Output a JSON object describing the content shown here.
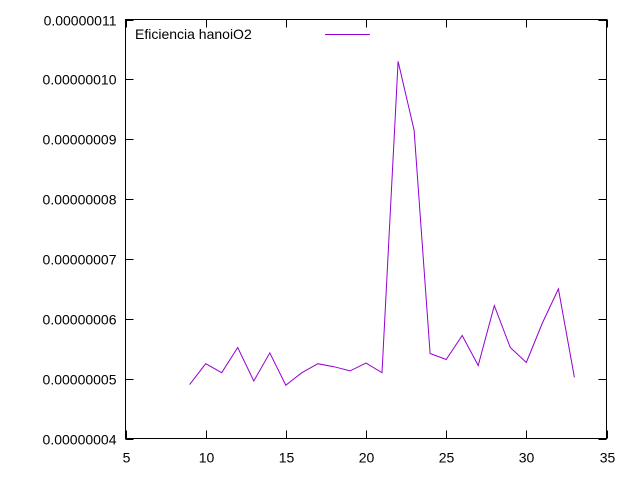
{
  "chart_data": {
    "type": "line",
    "title": "",
    "xlabel": "",
    "ylabel": "",
    "xlim": [
      5,
      35
    ],
    "ylim": [
      4e-08,
      1.1e-07
    ],
    "x_ticks": [
      5,
      10,
      15,
      20,
      25,
      30,
      35
    ],
    "x_tick_labels": [
      "5",
      "10",
      "15",
      "20",
      "25",
      "30",
      "35"
    ],
    "y_ticks": [
      4e-08,
      5e-08,
      6e-08,
      7e-08,
      8e-08,
      9e-08,
      1e-07,
      1.1e-07
    ],
    "y_tick_labels": [
      "0.00000004",
      "0.00000005",
      "0.00000006",
      "0.00000007",
      "0.00000008",
      "0.00000009",
      "0.00000010",
      "0.00000011"
    ],
    "grid": false,
    "legend_position": "top-left",
    "series": [
      {
        "name": "Eficiencia hanoiO2",
        "color": "#9400d3",
        "x": [
          9,
          10,
          11,
          12,
          13,
          14,
          15,
          16,
          17,
          18,
          19,
          20,
          21,
          22,
          23,
          24,
          25,
          26,
          27,
          28,
          29,
          30,
          31,
          32,
          33
        ],
        "y": [
          4.9e-08,
          5.25e-08,
          5.1e-08,
          5.52e-08,
          4.96e-08,
          5.43e-08,
          4.89e-08,
          5.1e-08,
          5.25e-08,
          5.2e-08,
          5.13e-08,
          5.26e-08,
          5.1e-08,
          1.03e-07,
          9.15e-08,
          5.42e-08,
          5.32e-08,
          5.72e-08,
          5.22e-08,
          6.22e-08,
          5.52e-08,
          5.27e-08,
          5.93e-08,
          6.5e-08,
          5.02e-08
        ]
      }
    ]
  }
}
